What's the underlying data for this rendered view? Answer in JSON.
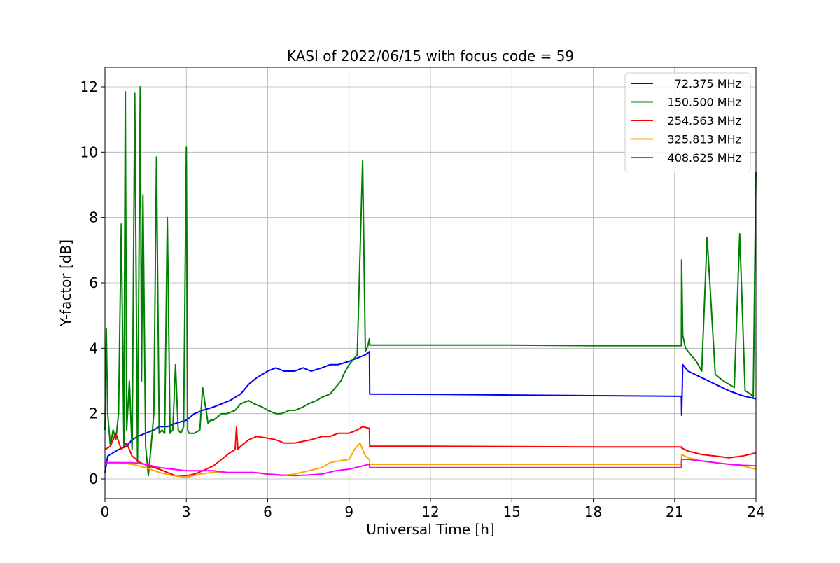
{
  "chart_data": {
    "type": "line",
    "title": "KASI of 2022/06/15 with focus code = 59",
    "xlabel": "Universal Time [h]",
    "ylabel": "Y-factor [dB]",
    "xlim": [
      0,
      24
    ],
    "ylim": [
      -0.6,
      12.6
    ],
    "xticks": [
      0,
      3,
      6,
      9,
      12,
      15,
      18,
      21,
      24
    ],
    "yticks": [
      0,
      2,
      4,
      6,
      8,
      10,
      12
    ],
    "grid": true,
    "legend_position": "top-right",
    "series": [
      {
        "name": "72.375 MHz",
        "color": "#0000ff",
        "x": [
          0,
          0.1,
          0.3,
          0.5,
          0.8,
          1.0,
          1.2,
          1.5,
          1.8,
          2.0,
          2.3,
          2.6,
          3.0,
          3.3,
          3.6,
          4.0,
          4.3,
          4.6,
          5.0,
          5.3,
          5.6,
          6.0,
          6.3,
          6.6,
          7.0,
          7.3,
          7.6,
          8.0,
          8.3,
          8.6,
          9.0,
          9.3,
          9.6,
          9.75,
          9.76,
          12,
          15,
          18,
          21.25,
          21.26,
          21.3,
          21.5,
          22.0,
          22.5,
          23.0,
          23.5,
          24.0
        ],
        "y": [
          0.2,
          0.7,
          0.8,
          0.9,
          1.0,
          1.2,
          1.3,
          1.4,
          1.5,
          1.6,
          1.6,
          1.7,
          1.8,
          2.0,
          2.1,
          2.2,
          2.3,
          2.4,
          2.6,
          2.9,
          3.1,
          3.3,
          3.4,
          3.3,
          3.3,
          3.4,
          3.3,
          3.4,
          3.5,
          3.5,
          3.6,
          3.7,
          3.8,
          3.9,
          2.6,
          2.59,
          2.57,
          2.55,
          2.53,
          1.95,
          3.5,
          3.3,
          3.1,
          2.9,
          2.7,
          2.55,
          2.45
        ]
      },
      {
        "name": "150.500 MHz",
        "color": "#008000",
        "x": [
          0,
          0.05,
          0.1,
          0.2,
          0.3,
          0.4,
          0.5,
          0.6,
          0.7,
          0.75,
          0.8,
          0.9,
          1.0,
          1.1,
          1.2,
          1.3,
          1.35,
          1.4,
          1.5,
          1.6,
          1.7,
          1.8,
          1.9,
          2.0,
          2.1,
          2.2,
          2.3,
          2.4,
          2.5,
          2.6,
          2.7,
          2.8,
          2.9,
          3.0,
          3.05,
          3.1,
          3.2,
          3.3,
          3.5,
          3.6,
          3.8,
          3.9,
          4.0,
          4.3,
          4.5,
          4.8,
          5.0,
          5.3,
          5.5,
          5.8,
          6.0,
          6.3,
          6.5,
          6.8,
          7.0,
          7.3,
          7.5,
          7.8,
          8.0,
          8.3,
          8.5,
          8.7,
          8.8,
          9.0,
          9.2,
          9.3,
          9.5,
          9.6,
          9.7,
          9.75,
          9.76,
          12,
          15,
          18,
          21.25,
          21.26,
          21.3,
          21.4,
          21.6,
          21.8,
          22.0,
          22.2,
          22.5,
          22.8,
          23.0,
          23.2,
          23.4,
          23.6,
          23.8,
          23.9,
          24.0
        ],
        "y": [
          1.5,
          4.6,
          2.0,
          1.0,
          1.5,
          1.2,
          2.0,
          7.8,
          1.0,
          11.85,
          1.5,
          3.0,
          0.9,
          11.8,
          0.5,
          12.0,
          3.0,
          8.7,
          1.0,
          0.1,
          1.0,
          2.0,
          9.85,
          1.4,
          1.5,
          1.4,
          8.0,
          1.4,
          1.5,
          3.5,
          1.5,
          1.4,
          1.6,
          10.15,
          1.5,
          1.4,
          1.4,
          1.4,
          1.5,
          2.8,
          1.7,
          1.8,
          1.8,
          2.0,
          2.0,
          2.1,
          2.3,
          2.4,
          2.3,
          2.2,
          2.1,
          2.0,
          2.0,
          2.1,
          2.1,
          2.2,
          2.3,
          2.4,
          2.5,
          2.6,
          2.8,
          3.0,
          3.2,
          3.5,
          3.7,
          3.8,
          9.75,
          3.9,
          4.1,
          4.3,
          4.1,
          4.1,
          4.1,
          4.08,
          4.08,
          6.7,
          4.4,
          4.0,
          3.8,
          3.6,
          3.3,
          7.4,
          3.2,
          3.0,
          2.9,
          2.8,
          7.5,
          2.7,
          2.6,
          2.5,
          9.4
        ]
      },
      {
        "name": "254.563 MHz",
        "color": "#ff0000",
        "x": [
          0,
          0.2,
          0.4,
          0.6,
          0.8,
          1.0,
          1.3,
          1.6,
          2.0,
          2.3,
          2.6,
          3.0,
          3.3,
          3.6,
          4.0,
          4.3,
          4.6,
          4.8,
          4.85,
          4.9,
          5.0,
          5.3,
          5.6,
          6.0,
          6.3,
          6.6,
          7.0,
          7.3,
          7.6,
          8.0,
          8.3,
          8.6,
          9.0,
          9.3,
          9.5,
          9.75,
          9.76,
          12,
          15,
          18,
          21.25,
          21.26,
          21.5,
          22.0,
          22.5,
          23.0,
          23.5,
          24.0
        ],
        "y": [
          0.9,
          1.0,
          1.4,
          0.9,
          1.1,
          0.7,
          0.5,
          0.4,
          0.3,
          0.2,
          0.1,
          0.1,
          0.15,
          0.25,
          0.4,
          0.6,
          0.8,
          0.9,
          1.6,
          0.9,
          1.0,
          1.2,
          1.3,
          1.25,
          1.2,
          1.1,
          1.1,
          1.15,
          1.2,
          1.3,
          1.3,
          1.4,
          1.4,
          1.5,
          1.6,
          1.55,
          1.0,
          1.0,
          0.99,
          0.98,
          0.98,
          0.95,
          0.85,
          0.75,
          0.7,
          0.65,
          0.7,
          0.8
        ]
      },
      {
        "name": "325.813 MHz",
        "color": "#ffa500",
        "x": [
          0,
          0.5,
          1.0,
          1.5,
          2.0,
          2.5,
          3.0,
          3.5,
          4.0,
          4.5,
          5.0,
          5.5,
          6.0,
          6.5,
          7.0,
          7.5,
          8.0,
          8.3,
          8.6,
          9.0,
          9.2,
          9.4,
          9.6,
          9.75,
          9.76,
          12,
          15,
          18,
          21.25,
          21.26,
          21.5,
          22.0,
          22.5,
          23.0,
          23.5,
          24.0
        ],
        "y": [
          0.5,
          0.5,
          0.45,
          0.35,
          0.2,
          0.1,
          0.05,
          0.15,
          0.2,
          0.2,
          0.2,
          0.2,
          0.15,
          0.1,
          0.15,
          0.25,
          0.35,
          0.5,
          0.55,
          0.6,
          0.9,
          1.1,
          0.7,
          0.6,
          0.45,
          0.45,
          0.45,
          0.45,
          0.45,
          0.75,
          0.65,
          0.55,
          0.5,
          0.45,
          0.4,
          0.3
        ]
      },
      {
        "name": "408.625 MHz",
        "color": "#ff00ff",
        "x": [
          0,
          0.5,
          1.0,
          1.5,
          2.0,
          2.5,
          3.0,
          3.5,
          4.0,
          4.5,
          5.0,
          5.5,
          6.0,
          6.5,
          7.0,
          7.5,
          8.0,
          8.5,
          9.0,
          9.5,
          9.75,
          9.76,
          12,
          15,
          18,
          21.25,
          21.26,
          21.5,
          22.0,
          22.5,
          23.0,
          23.5,
          24.0
        ],
        "y": [
          0.5,
          0.5,
          0.5,
          0.45,
          0.35,
          0.3,
          0.25,
          0.25,
          0.25,
          0.2,
          0.2,
          0.2,
          0.15,
          0.12,
          0.1,
          0.12,
          0.15,
          0.25,
          0.3,
          0.4,
          0.45,
          0.35,
          0.35,
          0.35,
          0.35,
          0.35,
          0.6,
          0.6,
          0.55,
          0.5,
          0.45,
          0.42,
          0.4
        ]
      }
    ]
  }
}
